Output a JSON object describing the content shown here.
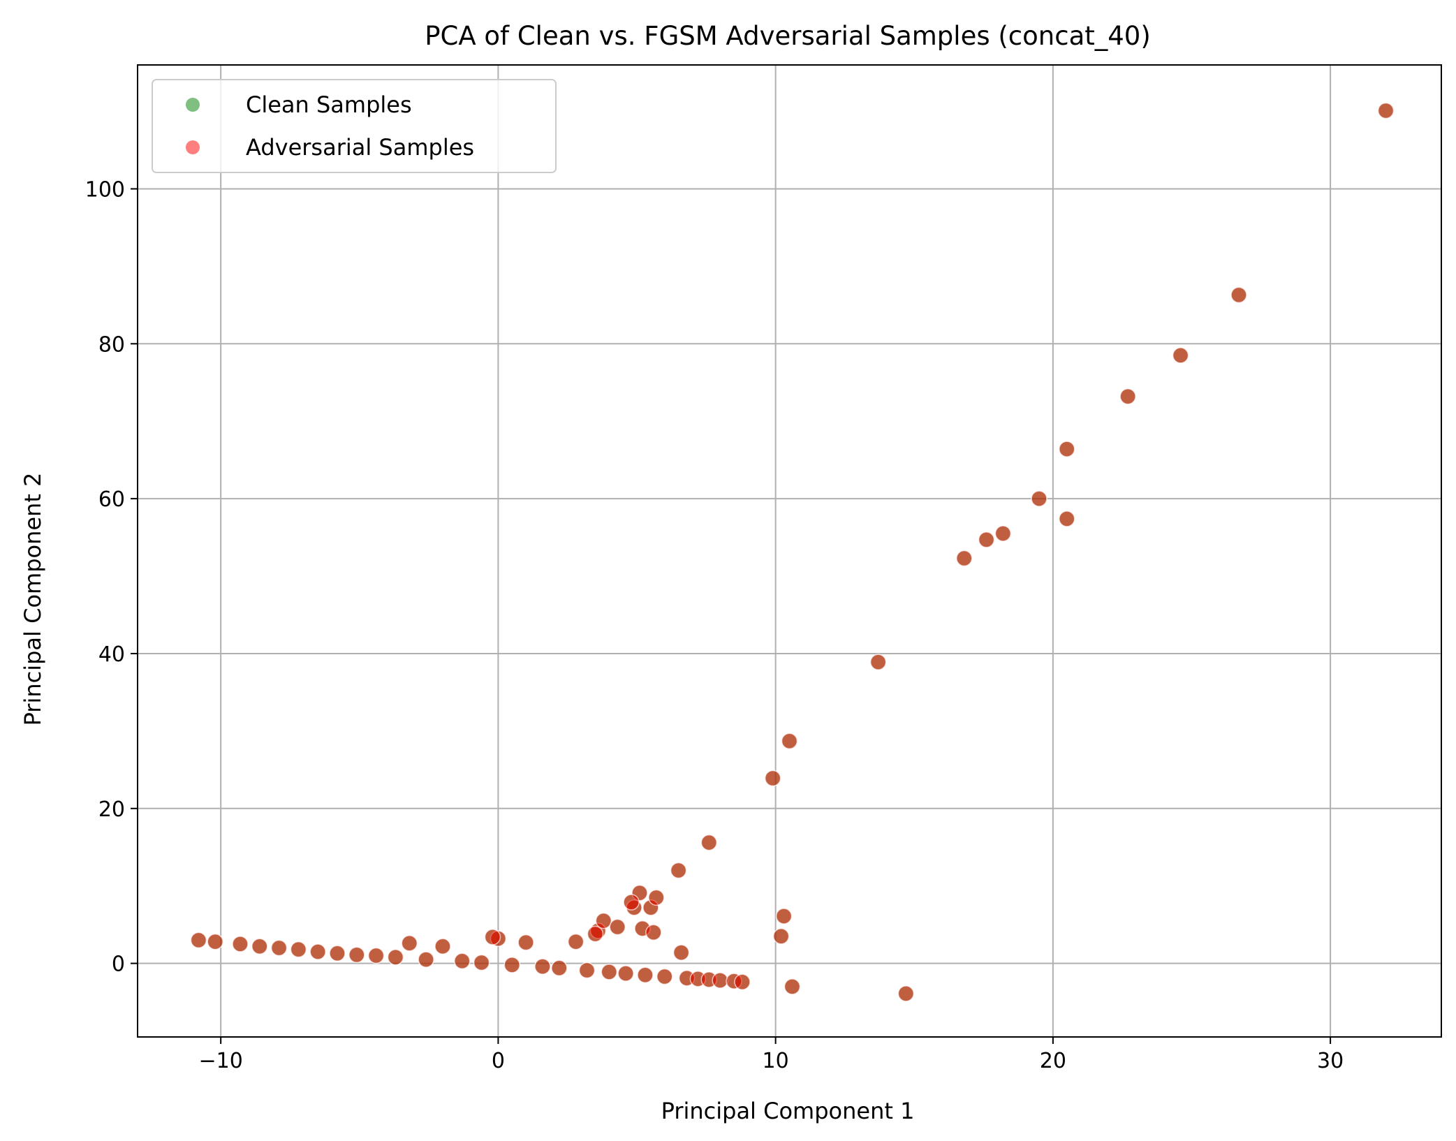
{
  "chart_data": {
    "type": "scatter",
    "title": "PCA of Clean vs. FGSM Adversarial Samples (concat_40)",
    "xlabel": "Principal Component 1",
    "ylabel": "Principal Component 2",
    "xlim": [
      -13,
      34
    ],
    "ylim": [
      -9.5,
      116
    ],
    "xticks": [
      -10,
      0,
      10,
      20,
      30
    ],
    "xtick_labels": [
      "−10",
      "0",
      "10",
      "20",
      "30"
    ],
    "yticks": [
      0,
      20,
      40,
      60,
      80,
      100
    ],
    "ytick_labels": [
      "0",
      "20",
      "40",
      "60",
      "80",
      "100"
    ],
    "grid": true,
    "legend_position": "top-left",
    "series": [
      {
        "name": "Clean Samples",
        "color": "#008000",
        "alpha": 0.5,
        "x": [
          -10.8,
          -10.2,
          -9.3,
          -8.6,
          -7.9,
          -7.2,
          -6.5,
          -5.8,
          -5.1,
          -4.4,
          -3.7,
          -3.2,
          -2.6,
          -2.0,
          -1.3,
          -0.6,
          0.0,
          0.5,
          1.0,
          1.6,
          2.2,
          2.8,
          3.2,
          3.6,
          3.8,
          4.0,
          4.3,
          4.6,
          4.9,
          5.1,
          5.3,
          5.5,
          5.7,
          6.0,
          6.5,
          6.6,
          6.8,
          7.2,
          7.6,
          8.0,
          8.5,
          8.8,
          7.6,
          9.9,
          10.2,
          10.3,
          10.5,
          10.6,
          13.7,
          14.7,
          16.8,
          17.6,
          18.2,
          19.5,
          20.5,
          20.5,
          22.7,
          24.6,
          26.7,
          32.0,
          -0.2,
          3.5,
          5.2,
          4.8,
          5.6
        ],
        "y": [
          3.0,
          2.8,
          2.5,
          2.2,
          2.0,
          1.8,
          1.5,
          1.3,
          1.1,
          1.0,
          0.8,
          2.6,
          0.5,
          2.2,
          0.3,
          0.1,
          3.2,
          -0.2,
          2.7,
          -0.4,
          -0.6,
          2.8,
          -0.9,
          4.2,
          5.5,
          -1.1,
          4.7,
          -1.3,
          7.2,
          9.1,
          -1.5,
          7.2,
          8.5,
          -1.7,
          12.0,
          1.4,
          -1.9,
          -2.0,
          -2.1,
          -2.2,
          -2.3,
          -2.4,
          15.6,
          23.9,
          3.5,
          6.1,
          28.7,
          -3.0,
          38.9,
          -3.9,
          52.3,
          54.7,
          55.5,
          60.0,
          66.4,
          57.4,
          73.2,
          78.5,
          86.3,
          110.1,
          3.4,
          3.8,
          4.5,
          7.9,
          4.0
        ]
      },
      {
        "name": "Adversarial Samples",
        "color": "#ff0000",
        "alpha": 0.5,
        "x": [
          -10.8,
          -10.2,
          -9.3,
          -8.6,
          -7.9,
          -7.2,
          -6.5,
          -5.8,
          -5.1,
          -4.4,
          -3.7,
          -3.2,
          -2.6,
          -2.0,
          -1.3,
          -0.6,
          0.0,
          0.5,
          1.0,
          1.6,
          2.2,
          2.8,
          3.2,
          3.6,
          3.8,
          4.0,
          4.3,
          4.6,
          4.9,
          5.1,
          5.3,
          5.5,
          5.7,
          6.0,
          6.5,
          6.6,
          6.8,
          7.2,
          7.6,
          8.0,
          8.5,
          8.8,
          7.6,
          9.9,
          10.2,
          10.3,
          10.5,
          10.6,
          13.7,
          14.7,
          16.8,
          17.6,
          18.2,
          19.5,
          20.5,
          20.5,
          22.7,
          24.6,
          26.7,
          32.0,
          -0.2,
          3.5,
          5.2,
          4.8,
          5.6
        ],
        "y": [
          3.0,
          2.8,
          2.5,
          2.2,
          2.0,
          1.8,
          1.5,
          1.3,
          1.1,
          1.0,
          0.8,
          2.6,
          0.5,
          2.2,
          0.3,
          0.1,
          3.2,
          -0.2,
          2.7,
          -0.4,
          -0.6,
          2.8,
          -0.9,
          4.2,
          5.5,
          -1.1,
          4.7,
          -1.3,
          7.2,
          9.1,
          -1.5,
          7.2,
          8.5,
          -1.7,
          12.0,
          1.4,
          -1.9,
          -2.0,
          -2.1,
          -2.2,
          -2.3,
          -2.4,
          15.6,
          23.9,
          3.5,
          6.1,
          28.7,
          -3.0,
          38.9,
          -3.9,
          52.3,
          54.7,
          55.5,
          60.0,
          66.4,
          57.4,
          73.2,
          78.5,
          86.3,
          110.1,
          3.4,
          3.8,
          4.5,
          7.9,
          4.0
        ]
      }
    ]
  }
}
